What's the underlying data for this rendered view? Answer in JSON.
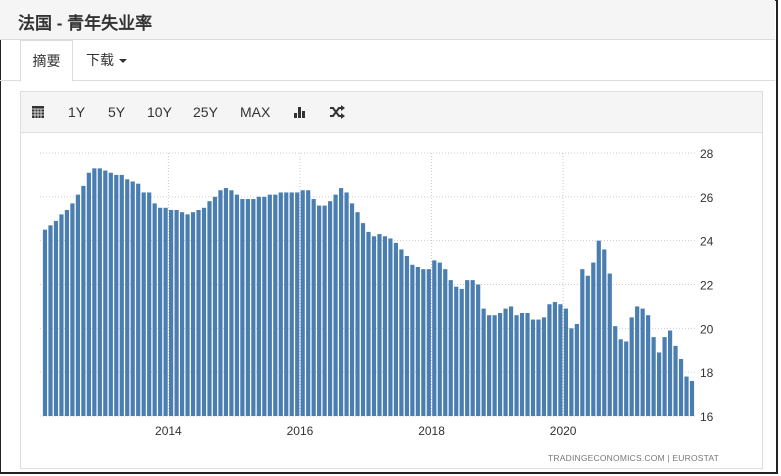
{
  "header": {
    "title": "法国 - 青年失业率"
  },
  "tabs": [
    {
      "label": "摘要"
    },
    {
      "label": "下载"
    }
  ],
  "toolbar": {
    "items": [
      "1Y",
      "5Y",
      "10Y",
      "25Y",
      "MAX"
    ],
    "calendar_icon": "calendar-icon",
    "bar_icon": "bar-chart-icon",
    "shuffle_icon": "shuffle-icon"
  },
  "source": "TRADINGECONOMICS.COM  |  EUROSTAT",
  "colors": {
    "bar": "#4a7eb0",
    "grid": "#cccccc"
  },
  "chart_data": {
    "type": "bar",
    "title": "法国 - 青年失业率",
    "start_month": "2012-02",
    "frequency": "monthly",
    "ylim": [
      16,
      28
    ],
    "yticks": [
      "16",
      "18",
      "20",
      "22",
      "24",
      "26",
      "28"
    ],
    "xticks": [
      "2014",
      "2016",
      "2018",
      "2020"
    ],
    "grid": true,
    "values": [
      24.5,
      24.7,
      24.9,
      25.2,
      25.4,
      25.7,
      26.1,
      26.5,
      27.1,
      27.3,
      27.3,
      27.2,
      27.1,
      27.0,
      27.0,
      26.8,
      26.7,
      26.6,
      26.2,
      26.2,
      25.7,
      25.5,
      25.5,
      25.4,
      25.4,
      25.3,
      25.2,
      25.3,
      25.4,
      25.5,
      25.8,
      26.0,
      26.3,
      26.4,
      26.3,
      26.1,
      25.9,
      25.9,
      25.9,
      26.0,
      26.0,
      26.1,
      26.1,
      26.2,
      26.2,
      26.2,
      26.2,
      26.3,
      26.3,
      25.9,
      25.6,
      25.6,
      25.8,
      26.1,
      26.4,
      26.2,
      25.7,
      25.3,
      24.8,
      24.4,
      24.2,
      24.3,
      24.2,
      24.1,
      23.9,
      23.6,
      23.3,
      22.9,
      22.8,
      22.7,
      22.7,
      23.1,
      23.0,
      22.7,
      22.2,
      21.9,
      21.8,
      22.2,
      22.2,
      22.0,
      20.9,
      20.6,
      20.6,
      20.7,
      20.9,
      21.0,
      20.6,
      20.7,
      20.7,
      20.4,
      20.4,
      20.5,
      21.1,
      21.2,
      21.1,
      20.9,
      20.0,
      20.2,
      22.7,
      22.4,
      23.0,
      24.0,
      23.6,
      22.5,
      20.1,
      19.5,
      19.4,
      20.5,
      21.0,
      20.9,
      20.6,
      19.6,
      18.9,
      19.6,
      19.9,
      19.2,
      18.6,
      17.8,
      17.6
    ]
  }
}
